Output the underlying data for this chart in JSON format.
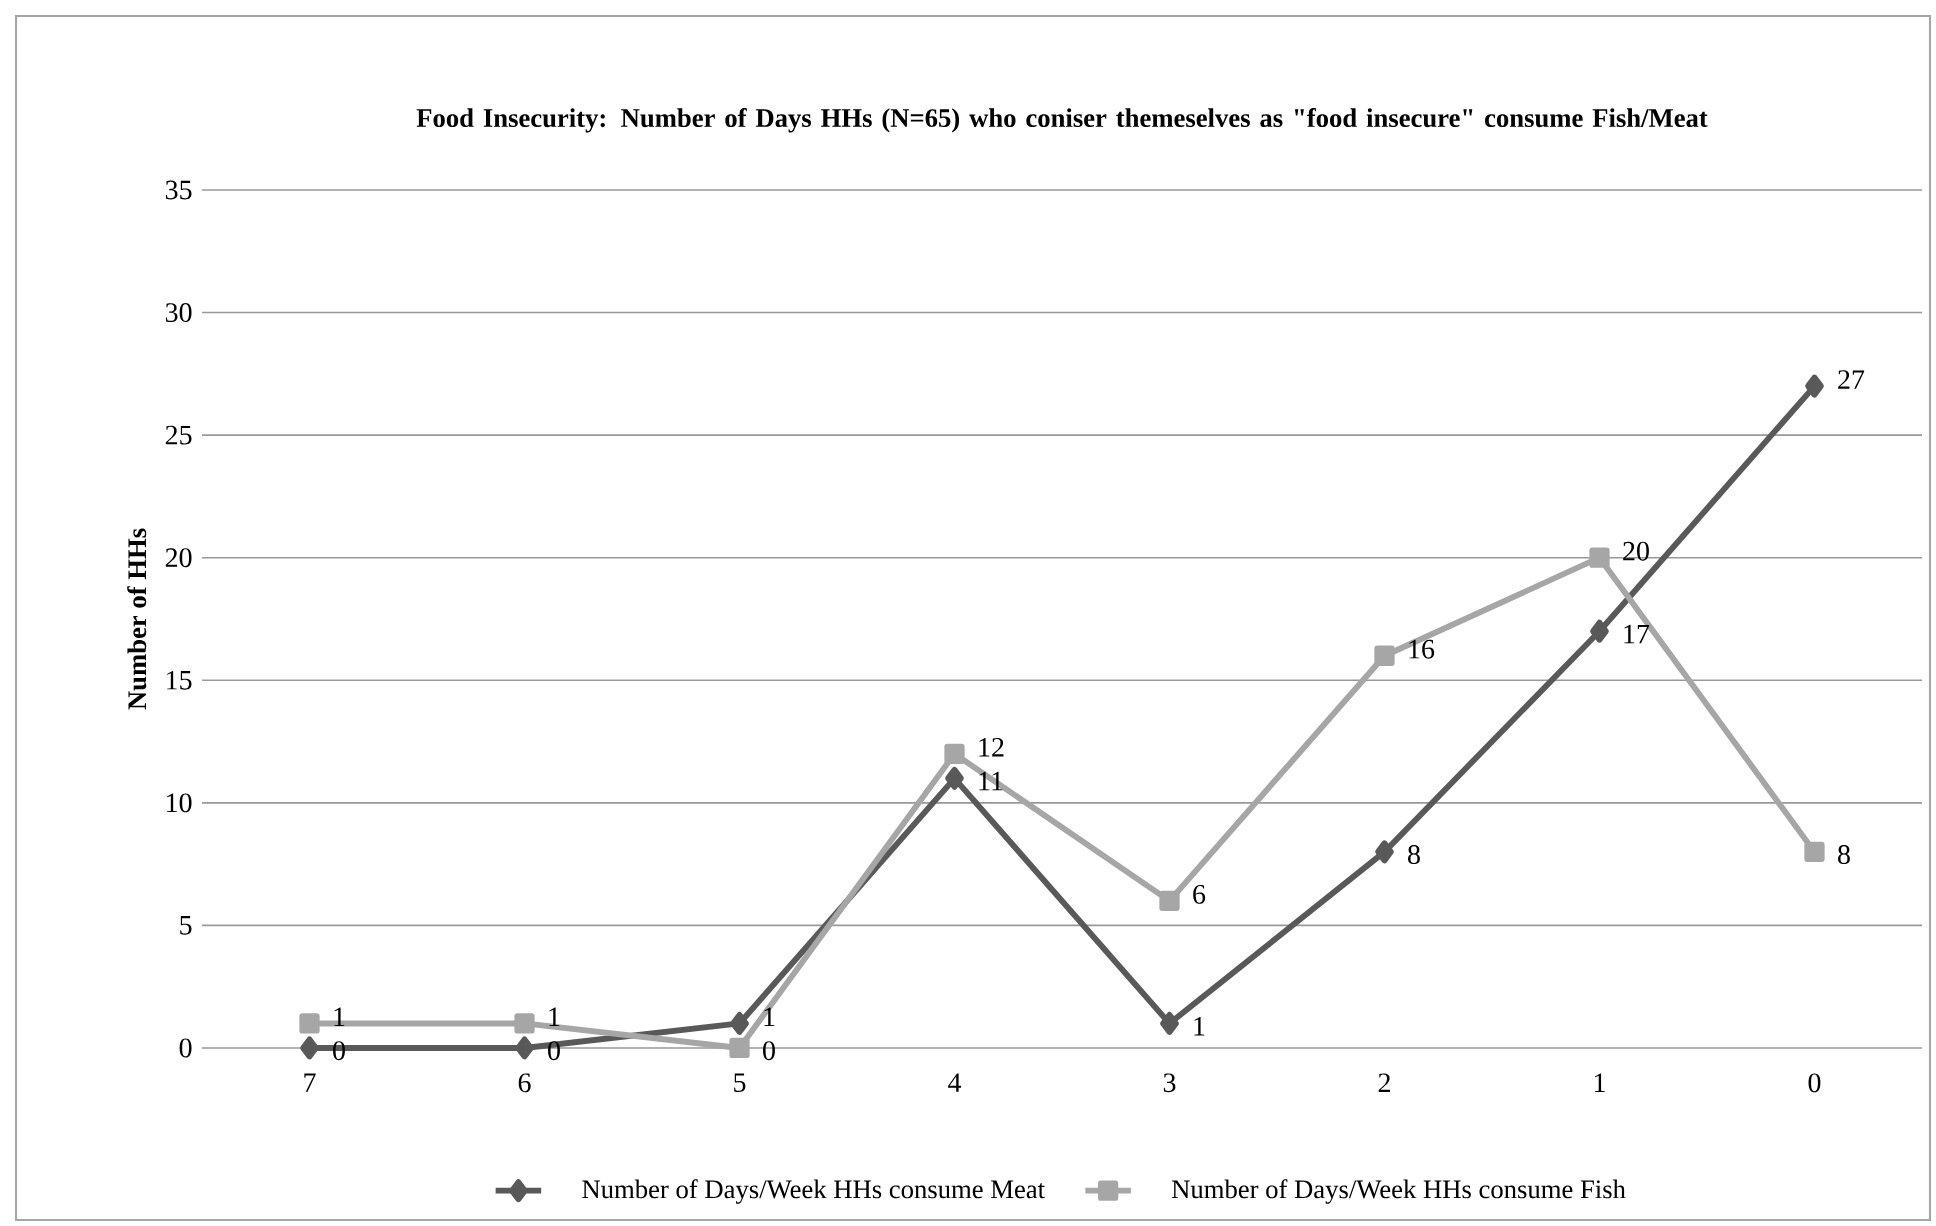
{
  "chart_data": {
    "type": "line",
    "title": "Food Insecurity: Number of Days HHs (N=65) who coniser themeselves as \"food insecure\" consume Fish/Meat",
    "ylabel": "Number of HHs",
    "categories": [
      "7",
      "6",
      "5",
      "4",
      "3",
      "2",
      "1",
      "0"
    ],
    "series": [
      {
        "name": "Number of Days/Week HHs consume Meat",
        "color": "#595959",
        "marker": "diamond",
        "values": [
          0,
          0,
          1,
          11,
          1,
          8,
          17,
          27
        ]
      },
      {
        "name": "Number of Days/Week HHs consume Fish",
        "color": "#a6a6a6",
        "marker": "square",
        "values": [
          1,
          1,
          0,
          12,
          6,
          16,
          20,
          8
        ]
      }
    ],
    "ylim": [
      0,
      35
    ],
    "yticks": [
      0,
      5,
      10,
      15,
      20,
      25,
      30,
      35
    ],
    "grid": "y",
    "legend": "bottom",
    "data_labels": true
  }
}
